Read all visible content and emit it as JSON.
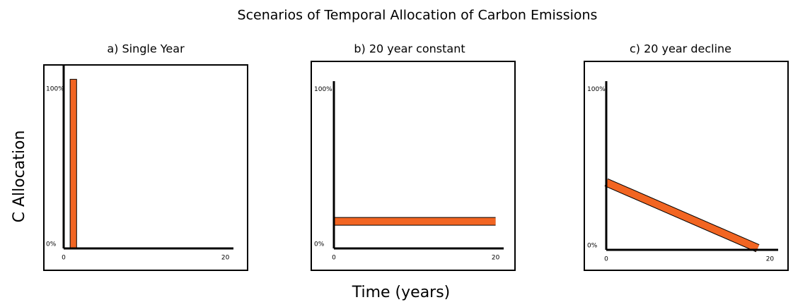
{
  "title": "Scenarios of Temporal Allocation of Carbon Emissions",
  "y_label": "C Allocation",
  "x_label": "Time (years)",
  "chart_data": [
    {
      "type": "histogram",
      "title": "a) Single Year",
      "bins": [
        0.8,
        1.6
      ],
      "values": [
        106
      ],
      "color": "#f26522",
      "xlim": [
        0,
        21
      ],
      "ylim": [
        0,
        115
      ],
      "xticks": [
        0,
        20
      ],
      "yticks": [
        {
          "value": 0,
          "label": "0%"
        },
        {
          "value": 100,
          "label": "100%"
        }
      ]
    },
    {
      "type": "line",
      "title": "b)  20 year constant",
      "x": [
        0,
        20
      ],
      "values": [
        17,
        17
      ],
      "color": "#f26522",
      "xlim": [
        0,
        21
      ],
      "ylim": [
        0,
        105
      ],
      "xticks": [
        0,
        20
      ],
      "yticks": [
        {
          "value": 0,
          "label": "0%"
        },
        {
          "value": 100,
          "label": "100%"
        }
      ]
    },
    {
      "type": "line",
      "title": "c) 20 year decline",
      "x": [
        0,
        18.5
      ],
      "values": [
        42,
        1
      ],
      "color": "#f26522",
      "xlim": [
        0,
        21
      ],
      "ylim": [
        0,
        105
      ],
      "xticks": [
        0,
        20
      ],
      "yticks": [
        {
          "value": 0,
          "label": "0%"
        },
        {
          "value": 100,
          "label": "100%"
        }
      ]
    }
  ]
}
